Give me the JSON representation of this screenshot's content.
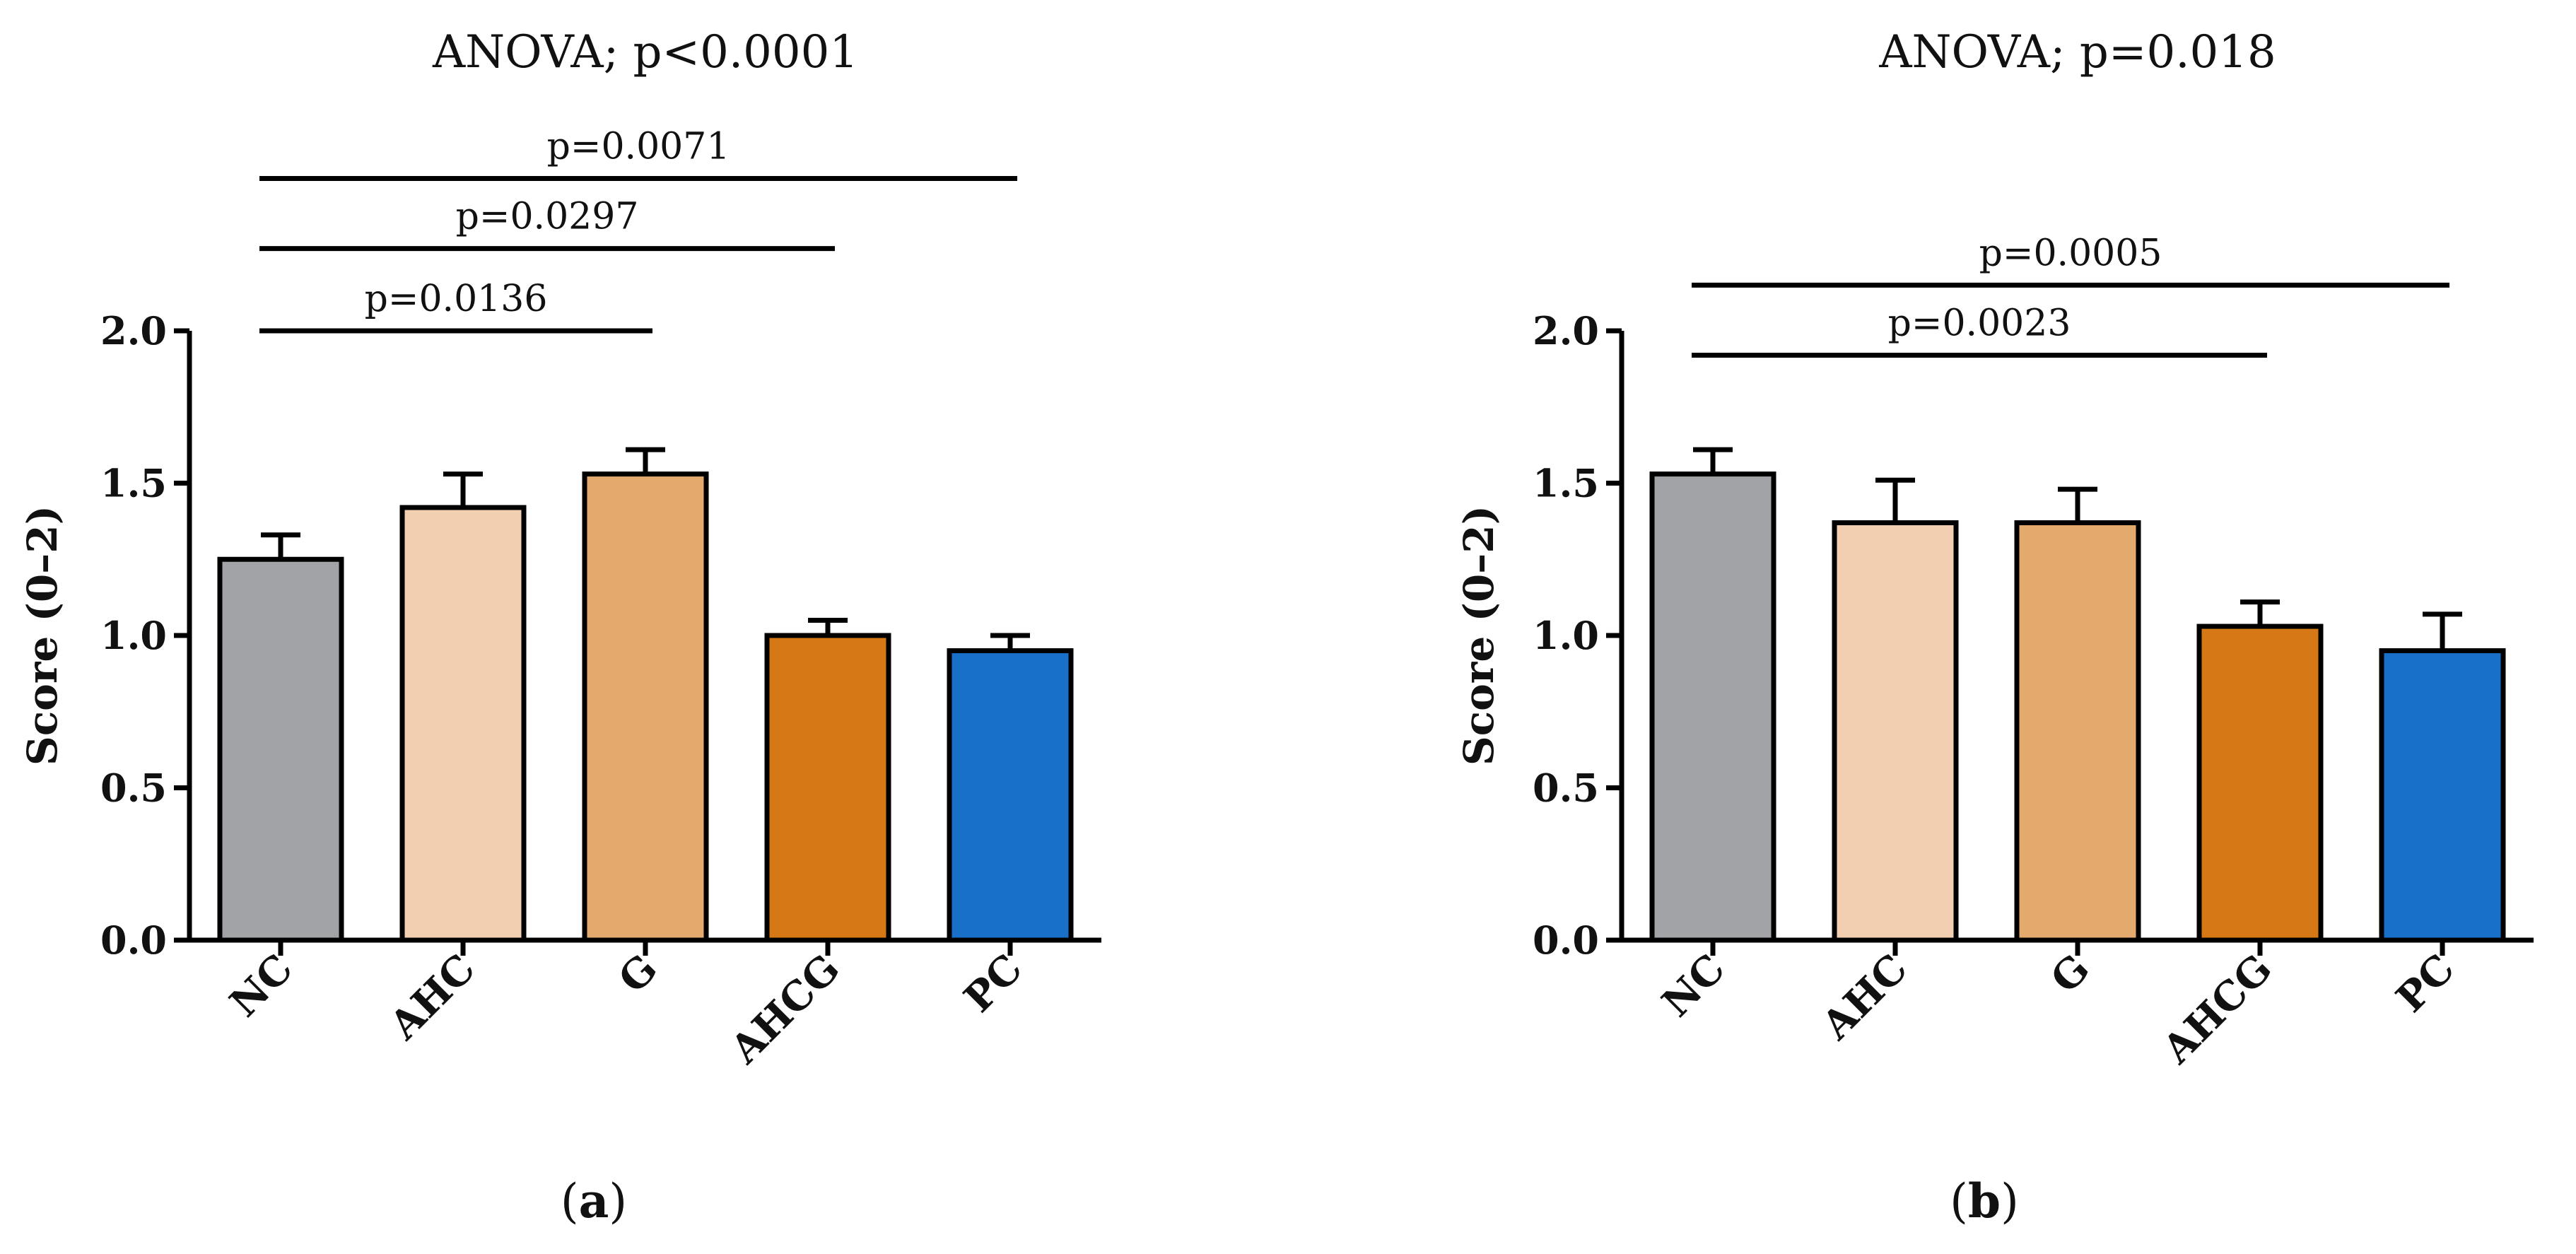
{
  "chart_data": [
    {
      "type": "bar",
      "panel": "a",
      "title": "ANOVA; p<0.0001",
      "ylabel": "Score (0–2)",
      "xlabel": "",
      "ylim": [
        0,
        2
      ],
      "yticks": [
        "0.0",
        "0.5",
        "1.0",
        "1.5",
        "2.0"
      ],
      "categories": [
        "NC",
        "AHC",
        "G",
        "AHCG",
        "PC"
      ],
      "values": [
        1.25,
        1.42,
        1.53,
        1.0,
        0.95
      ],
      "errors": [
        0.08,
        0.11,
        0.08,
        0.05,
        0.05
      ],
      "colors": [
        "#a2a3a7",
        "#f2cfb0",
        "#e3a96d",
        "#d57815",
        "#1870c8"
      ],
      "comparisons": [
        {
          "from": 0,
          "to": 2,
          "label": "p=0.0136",
          "level": 2.0
        },
        {
          "from": 0,
          "to": 3,
          "label": "p=0.0297",
          "level": 2.27
        },
        {
          "from": 0,
          "to": 4,
          "label": "p=0.0071",
          "level": 2.5
        }
      ],
      "panel_label": {
        "open": "(",
        "letter": "a",
        "close": ")"
      }
    },
    {
      "type": "bar",
      "panel": "b",
      "title": "ANOVA; p=0.018",
      "ylabel": "Score (0–2)",
      "xlabel": "",
      "ylim": [
        0,
        2
      ],
      "yticks": [
        "0.0",
        "0.5",
        "1.0",
        "1.5",
        "2.0"
      ],
      "categories": [
        "NC",
        "AHC",
        "G",
        "AHCG",
        "PC"
      ],
      "values": [
        1.53,
        1.37,
        1.37,
        1.03,
        0.95
      ],
      "errors": [
        0.08,
        0.14,
        0.11,
        0.08,
        0.12
      ],
      "colors": [
        "#a2a3a7",
        "#f2cfb0",
        "#e3a96d",
        "#d57815",
        "#1870c8"
      ],
      "comparisons": [
        {
          "from": 0,
          "to": 3,
          "label": "p=0.0023",
          "level": 1.92
        },
        {
          "from": 0,
          "to": 4,
          "label": "p=0.0005",
          "level": 2.15
        }
      ],
      "panel_label": {
        "open": "(",
        "letter": "b",
        "close": ")"
      }
    }
  ]
}
